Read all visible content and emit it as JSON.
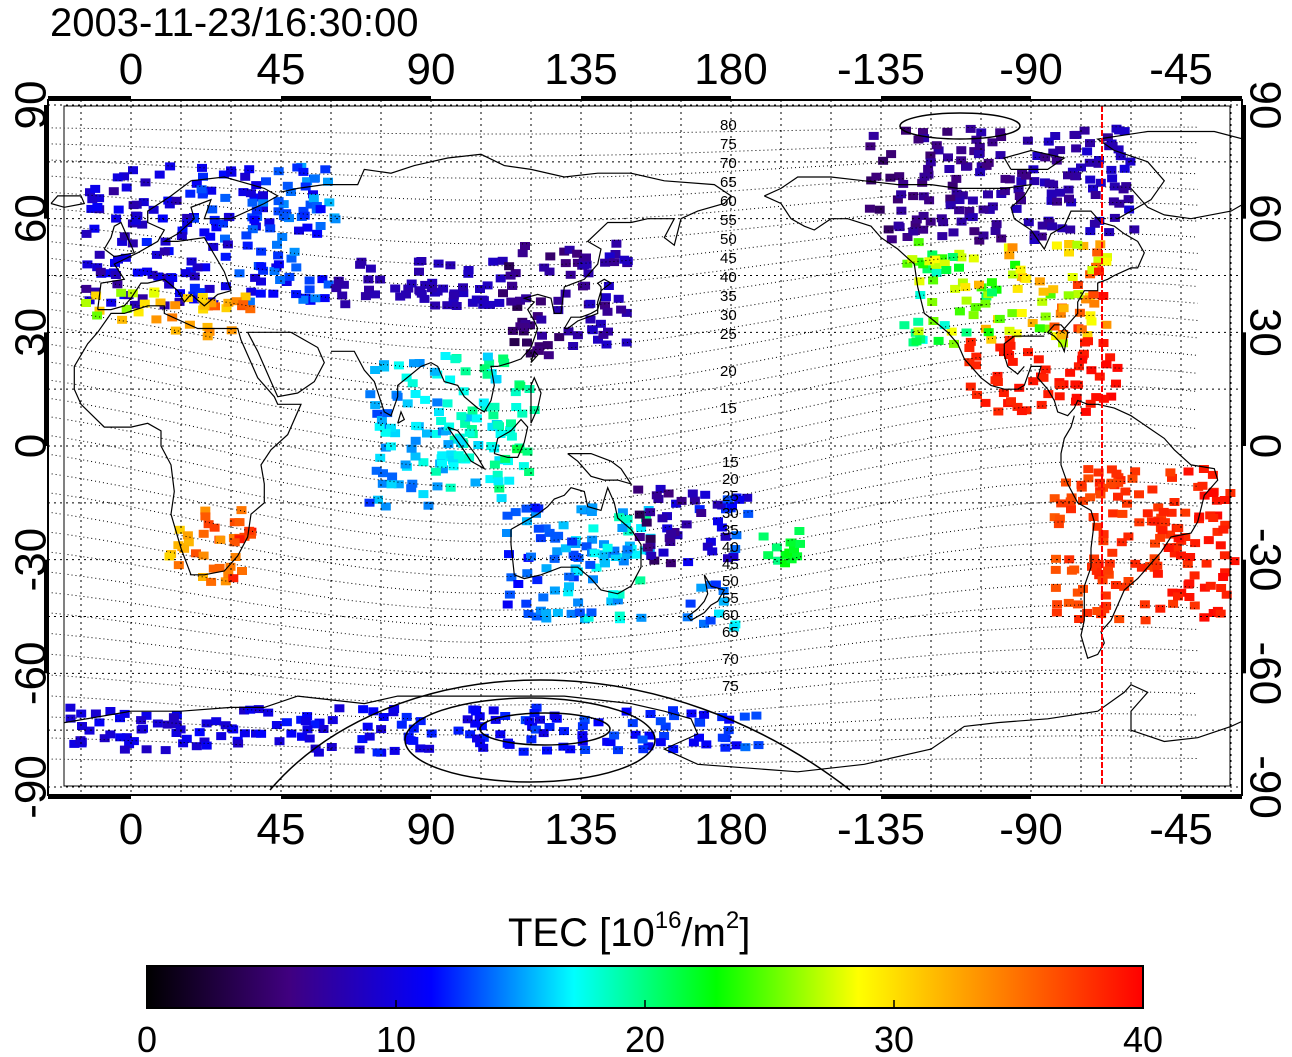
{
  "title": "2003-11-23/16:30:00",
  "map": {
    "x_ticks_top": [
      "0",
      "45",
      "90",
      "135",
      "180",
      "-135",
      "-90",
      "-45"
    ],
    "x_ticks_bottom": [
      "0",
      "45",
      "90",
      "135",
      "180",
      "-135",
      "-90",
      "-45"
    ],
    "y_ticks_left": [
      "90",
      "60",
      "30",
      "0",
      "-30",
      "-60",
      "-90"
    ],
    "y_ticks_right": [
      "90",
      "60",
      "30",
      "0",
      "-30",
      "-60",
      "-90"
    ],
    "contour_labels_north": [
      "80",
      "75",
      "70",
      "65",
      "60",
      "55",
      "50",
      "45",
      "40",
      "35",
      "30",
      "25",
      "20",
      "15"
    ],
    "contour_labels_south": [
      "15",
      "20",
      "25",
      "30",
      "35",
      "40",
      "45",
      "50",
      "55",
      "60",
      "65",
      "70",
      "75"
    ],
    "terminator_color": "#ff0000"
  },
  "colorbar": {
    "label_prefix": "TEC  [10",
    "label_exp1": "16",
    "label_mid": "/m",
    "label_exp2": "2",
    "label_suffix": "]",
    "ticks": [
      "0",
      "10",
      "20",
      "30",
      "40"
    ],
    "min": 0,
    "max": 40,
    "colors": [
      "#000000",
      "#400080",
      "#0000ff",
      "#00ffff",
      "#00ff00",
      "#ffff00",
      "#ff8000",
      "#ff0000"
    ]
  },
  "chart_data": {
    "type": "heatmap",
    "x_range": [
      -25,
      315
    ],
    "y_range": [
      -90,
      90
    ],
    "regions": [
      {
        "lon": [
          -15,
          60
        ],
        "lat": [
          38,
          75
        ],
        "tec": [
          6,
          16
        ]
      },
      {
        "lon": [
          -15,
          35
        ],
        "lat": [
          30,
          42
        ],
        "tec": [
          24,
          38
        ]
      },
      {
        "lon": [
          60,
          110
        ],
        "lat": [
          38,
          50
        ],
        "tec": [
          7,
          9
        ]
      },
      {
        "lon": [
          110,
          148
        ],
        "lat": [
          25,
          55
        ],
        "tec": [
          3,
          10
        ]
      },
      {
        "lon": [
          230,
          292
        ],
        "lat": [
          28,
          55
        ],
        "tec": [
          15,
          40
        ]
      },
      {
        "lon": [
          220,
          300
        ],
        "lat": [
          55,
          85
        ],
        "tec": [
          4,
          10
        ]
      },
      {
        "lon": [
          250,
          295
        ],
        "lat": [
          10,
          30
        ],
        "tec": [
          38,
          40
        ]
      },
      {
        "lon": [
          275,
          330
        ],
        "lat": [
          -45,
          -5
        ],
        "tec": [
          36,
          40
        ]
      },
      {
        "lon": [
          110,
          155
        ],
        "lat": [
          -45,
          -15
        ],
        "tec": [
          10,
          20
        ]
      },
      {
        "lon": [
          165,
          180
        ],
        "lat": [
          -48,
          -35
        ],
        "tec": [
          10,
          18
        ]
      },
      {
        "lon": [
          10,
          35
        ],
        "lat": [
          -35,
          -15
        ],
        "tec": [
          30,
          40
        ]
      },
      {
        "lon": [
          70,
          120
        ],
        "lat": [
          -15,
          25
        ],
        "tec": [
          12,
          22
        ]
      },
      {
        "lon": [
          -20,
          190
        ],
        "lat": [
          -80,
          -68
        ],
        "tec": [
          8,
          14
        ]
      },
      {
        "lon": [
          150,
          185
        ],
        "lat": [
          -30,
          -10
        ],
        "tec": [
          3,
          15
        ]
      },
      {
        "lon": [
          185,
          200
        ],
        "lat": [
          -30,
          -20
        ],
        "tec": [
          18,
          24
        ]
      }
    ]
  }
}
